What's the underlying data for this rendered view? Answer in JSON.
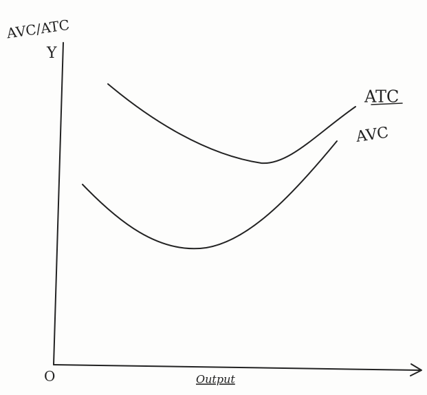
{
  "y_axis": {
    "label": "AVC/ATC",
    "letter": "Y"
  },
  "x_axis": {
    "label": "Output"
  },
  "origin": "O",
  "curves": [
    {
      "label": "ATC"
    },
    {
      "label": "AVC"
    }
  ]
}
